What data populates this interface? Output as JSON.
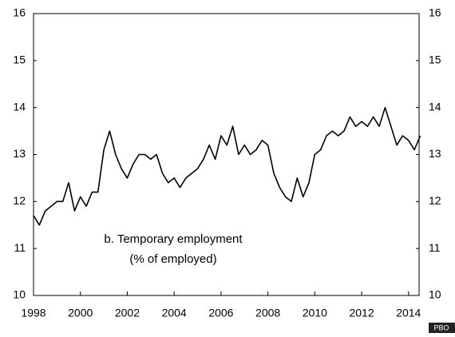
{
  "chart_data": {
    "type": "line",
    "annotations": [
      "b. Temporary employment",
      "(% of employed)"
    ],
    "source": "PBO",
    "x": [
      1998,
      1998.25,
      1998.5,
      1998.75,
      1999,
      1999.25,
      1999.5,
      1999.75,
      2000,
      2000.25,
      2000.5,
      2000.75,
      2001,
      2001.25,
      2001.5,
      2001.75,
      2002,
      2002.25,
      2002.5,
      2002.75,
      2003,
      2003.25,
      2003.5,
      2003.75,
      2004,
      2004.25,
      2004.5,
      2004.75,
      2005,
      2005.25,
      2005.5,
      2005.75,
      2006,
      2006.25,
      2006.5,
      2006.75,
      2007,
      2007.25,
      2007.5,
      2007.75,
      2008,
      2008.25,
      2008.5,
      2008.75,
      2009,
      2009.25,
      2009.5,
      2009.75,
      2010,
      2010.25,
      2010.5,
      2010.75,
      2011,
      2011.25,
      2011.5,
      2011.75,
      2012,
      2012.25,
      2012.5,
      2012.75,
      2013,
      2013.25,
      2013.5,
      2013.75,
      2014,
      2014.25,
      2014.5
    ],
    "series": [
      {
        "name": "Temporary employment",
        "color": "#000000",
        "values": [
          11.7,
          11.5,
          11.8,
          11.9,
          12.0,
          12.0,
          12.4,
          11.8,
          12.1,
          11.9,
          12.2,
          12.2,
          13.1,
          13.5,
          13.0,
          12.7,
          12.5,
          12.8,
          13.0,
          13.0,
          12.9,
          13.0,
          12.6,
          12.4,
          12.5,
          12.3,
          12.5,
          12.6,
          12.7,
          12.9,
          13.2,
          12.9,
          13.4,
          13.2,
          13.6,
          13.0,
          13.2,
          13.0,
          13.1,
          13.3,
          13.2,
          12.6,
          12.3,
          12.1,
          12.0,
          12.5,
          12.1,
          12.4,
          13.0,
          13.1,
          13.4,
          13.5,
          13.4,
          13.5,
          13.8,
          13.6,
          13.7,
          13.6,
          13.8,
          13.6,
          14.0,
          13.6,
          13.2,
          13.4,
          13.3,
          13.1,
          13.4
        ]
      }
    ],
    "xlim": [
      1998,
      2014.45
    ],
    "xticks": [
      1998,
      2000,
      2002,
      2004,
      2006,
      2008,
      2010,
      2012,
      2014
    ],
    "ylim": [
      10,
      16
    ],
    "yticks": [
      10,
      11,
      12,
      13,
      14,
      15,
      16
    ],
    "grid": false
  }
}
